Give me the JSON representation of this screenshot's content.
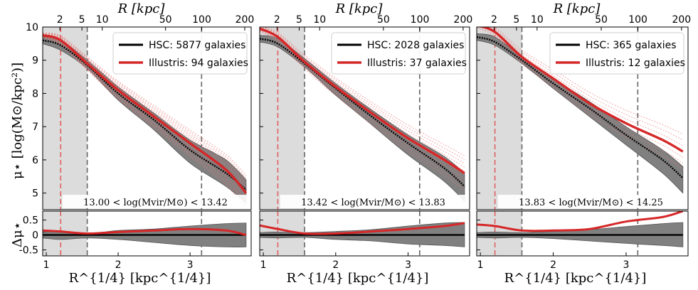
{
  "figure": {
    "ylabel_main": "μ⋆ [log(M⊙/kpc²)]",
    "ylabel_resid": "Δμ⋆",
    "xlabel": "R^{1/4} [kpc^{1/4}]"
  },
  "colors": {
    "hsc": "#000000",
    "illustris": "#d62728",
    "band": "#808080",
    "shade": "#dcdcdc"
  },
  "chart_data": [
    {
      "type": "line",
      "top_axis_label": "R [kpc]",
      "xlabel": "R^{1/4} [kpc^{1/4}]",
      "xlim": [
        0.95,
        3.85
      ],
      "ylim_main": [
        4.5,
        10.0
      ],
      "ylim_resid": [
        -0.7,
        0.8
      ],
      "x_ticks": [
        1,
        2,
        3
      ],
      "top_ticks": [
        2,
        5,
        10,
        50,
        100,
        200
      ],
      "y_ticks_main": [
        5,
        6,
        7,
        8,
        9,
        10
      ],
      "y_ticks_resid": [
        -0.5,
        0.0,
        0.5
      ],
      "shaded_region_x": [
        0.95,
        1.57
      ],
      "vlines": [
        {
          "x": 1.2,
          "color": "red"
        },
        {
          "x": 1.57,
          "color": "gray"
        },
        {
          "x": 3.16,
          "color": "gray"
        }
      ],
      "mass_bin_label": "13.00 < log(Mvir/M⊙) < 13.42",
      "legend": {
        "hsc": "HSC: 5877 galaxies",
        "illustris": "Illustris: 94 galaxies",
        "position": "top-right"
      },
      "x": [
        0.95,
        1.2,
        1.57,
        2.0,
        2.5,
        3.0,
        3.5,
        3.78
      ],
      "series": [
        {
          "name": "HSC median",
          "values": [
            9.6,
            9.45,
            8.85,
            8.0,
            7.2,
            6.3,
            5.6,
            5.1
          ]
        },
        {
          "name": "HSC band lower",
          "values": [
            9.5,
            9.3,
            8.75,
            7.8,
            6.9,
            5.9,
            5.2,
            4.7
          ]
        },
        {
          "name": "HSC band upper",
          "values": [
            9.7,
            9.6,
            9.0,
            8.2,
            7.4,
            6.6,
            6.0,
            5.4
          ]
        },
        {
          "name": "Illustris median",
          "values": [
            9.75,
            9.6,
            8.9,
            8.1,
            7.3,
            6.5,
            5.7,
            5.0
          ]
        }
      ],
      "resid_series": [
        {
          "name": "HSC residual",
          "values": [
            0,
            0,
            0,
            0,
            0,
            0,
            0,
            0
          ]
        },
        {
          "name": "HSC residual band lower",
          "values": [
            -0.1,
            -0.15,
            -0.1,
            -0.15,
            -0.25,
            -0.35,
            -0.4,
            -0.4
          ]
        },
        {
          "name": "HSC residual band upper",
          "values": [
            0.1,
            0.12,
            0.05,
            0.15,
            0.2,
            0.3,
            0.38,
            0.4
          ]
        },
        {
          "name": "Illustris residual",
          "values": [
            0.15,
            0.12,
            0.05,
            0.1,
            0.15,
            0.2,
            0.15,
            0.0
          ]
        }
      ]
    },
    {
      "type": "line",
      "top_axis_label": "R [kpc]",
      "xlabel": "R^{1/4} [kpc^{1/4}]",
      "xlim": [
        0.95,
        3.85
      ],
      "ylim_main": [
        4.5,
        10.0
      ],
      "ylim_resid": [
        -0.7,
        0.8
      ],
      "x_ticks": [
        1,
        2,
        3
      ],
      "top_ticks": [
        2,
        5,
        10,
        50,
        100,
        200
      ],
      "y_ticks_main": [
        5,
        6,
        7,
        8,
        9,
        10
      ],
      "y_ticks_resid": [
        -0.5,
        0.0,
        0.5
      ],
      "shaded_region_x": [
        0.95,
        1.57
      ],
      "vlines": [
        {
          "x": 1.2,
          "color": "red"
        },
        {
          "x": 1.57,
          "color": "gray"
        },
        {
          "x": 3.16,
          "color": "gray"
        }
      ],
      "mass_bin_label": "13.42 < log(Mvir/M⊙) < 13.83",
      "legend": {
        "hsc": "HSC: 2028 galaxies",
        "illustris": "Illustris: 37 galaxies",
        "position": "top-right"
      },
      "x": [
        0.95,
        1.2,
        1.57,
        2.0,
        2.5,
        3.0,
        3.5,
        3.78
      ],
      "series": [
        {
          "name": "HSC median",
          "values": [
            9.65,
            9.5,
            8.9,
            8.15,
            7.3,
            6.5,
            5.75,
            5.2
          ]
        },
        {
          "name": "HSC band lower",
          "values": [
            9.55,
            9.4,
            8.8,
            7.95,
            7.05,
            6.15,
            5.35,
            4.75
          ]
        },
        {
          "name": "HSC band upper",
          "values": [
            9.75,
            9.65,
            9.05,
            8.3,
            7.5,
            6.75,
            6.1,
            5.6
          ]
        },
        {
          "name": "Illustris median",
          "values": [
            9.95,
            9.7,
            8.95,
            8.2,
            7.4,
            6.65,
            6.0,
            5.6
          ]
        }
      ],
      "resid_series": [
        {
          "name": "HSC residual",
          "values": [
            0,
            0,
            0,
            0,
            0,
            0,
            0,
            0
          ]
        },
        {
          "name": "HSC residual band lower",
          "values": [
            -0.08,
            -0.1,
            -0.08,
            -0.15,
            -0.2,
            -0.3,
            -0.35,
            -0.4
          ]
        },
        {
          "name": "HSC residual band upper",
          "values": [
            0.08,
            0.1,
            0.08,
            0.12,
            0.18,
            0.3,
            0.4,
            0.42
          ]
        },
        {
          "name": "Illustris residual",
          "values": [
            0.32,
            0.2,
            0.05,
            0.05,
            0.12,
            0.2,
            0.3,
            0.4
          ]
        }
      ]
    },
    {
      "type": "line",
      "top_axis_label": "R [kpc]",
      "xlabel": "R^{1/4} [kpc^{1/4}]",
      "xlim": [
        0.95,
        3.85
      ],
      "ylim_main": [
        4.5,
        10.0
      ],
      "ylim_resid": [
        -0.7,
        0.8
      ],
      "x_ticks": [
        1,
        2,
        3
      ],
      "top_ticks": [
        2,
        5,
        10,
        50,
        100,
        200
      ],
      "y_ticks_main": [
        5,
        6,
        7,
        8,
        9,
        10
      ],
      "y_ticks_resid": [
        -0.5,
        0.0,
        0.5
      ],
      "shaded_region_x": [
        0.95,
        1.57
      ],
      "vlines": [
        {
          "x": 1.2,
          "color": "red"
        },
        {
          "x": 1.57,
          "color": "gray"
        },
        {
          "x": 3.16,
          "color": "gray"
        }
      ],
      "mass_bin_label": "13.83 < log(Mvir/M⊙) < 14.25",
      "legend": {
        "hsc": "HSC: 365 galaxies",
        "illustris": "Illustris: 12 galaxies",
        "position": "top-right"
      },
      "x": [
        0.95,
        1.2,
        1.57,
        2.0,
        2.5,
        3.0,
        3.5,
        3.78
      ],
      "series": [
        {
          "name": "HSC median",
          "values": [
            9.7,
            9.55,
            9.0,
            8.3,
            7.55,
            6.75,
            6.0,
            5.45
          ]
        },
        {
          "name": "HSC band lower",
          "values": [
            9.6,
            9.45,
            8.9,
            8.15,
            7.3,
            6.45,
            5.6,
            5.0
          ]
        },
        {
          "name": "HSC band upper",
          "values": [
            9.8,
            9.7,
            9.1,
            8.45,
            7.75,
            7.0,
            6.3,
            5.8
          ]
        },
        {
          "name": "Illustris median",
          "values": [
            10.05,
            9.85,
            9.1,
            8.45,
            7.7,
            7.1,
            6.6,
            6.25
          ]
        }
      ],
      "resid_series": [
        {
          "name": "HSC residual",
          "values": [
            0,
            0,
            0,
            0,
            0,
            0,
            0,
            0
          ]
        },
        {
          "name": "HSC residual band lower",
          "values": [
            -0.08,
            -0.1,
            -0.08,
            -0.12,
            -0.2,
            -0.28,
            -0.35,
            -0.4
          ]
        },
        {
          "name": "HSC residual band upper",
          "values": [
            0.08,
            0.1,
            0.08,
            0.12,
            0.18,
            0.28,
            0.38,
            0.42
          ]
        },
        {
          "name": "Illustris residual",
          "values": [
            0.35,
            0.3,
            0.15,
            0.15,
            0.2,
            0.45,
            0.6,
            0.8
          ]
        }
      ]
    }
  ]
}
